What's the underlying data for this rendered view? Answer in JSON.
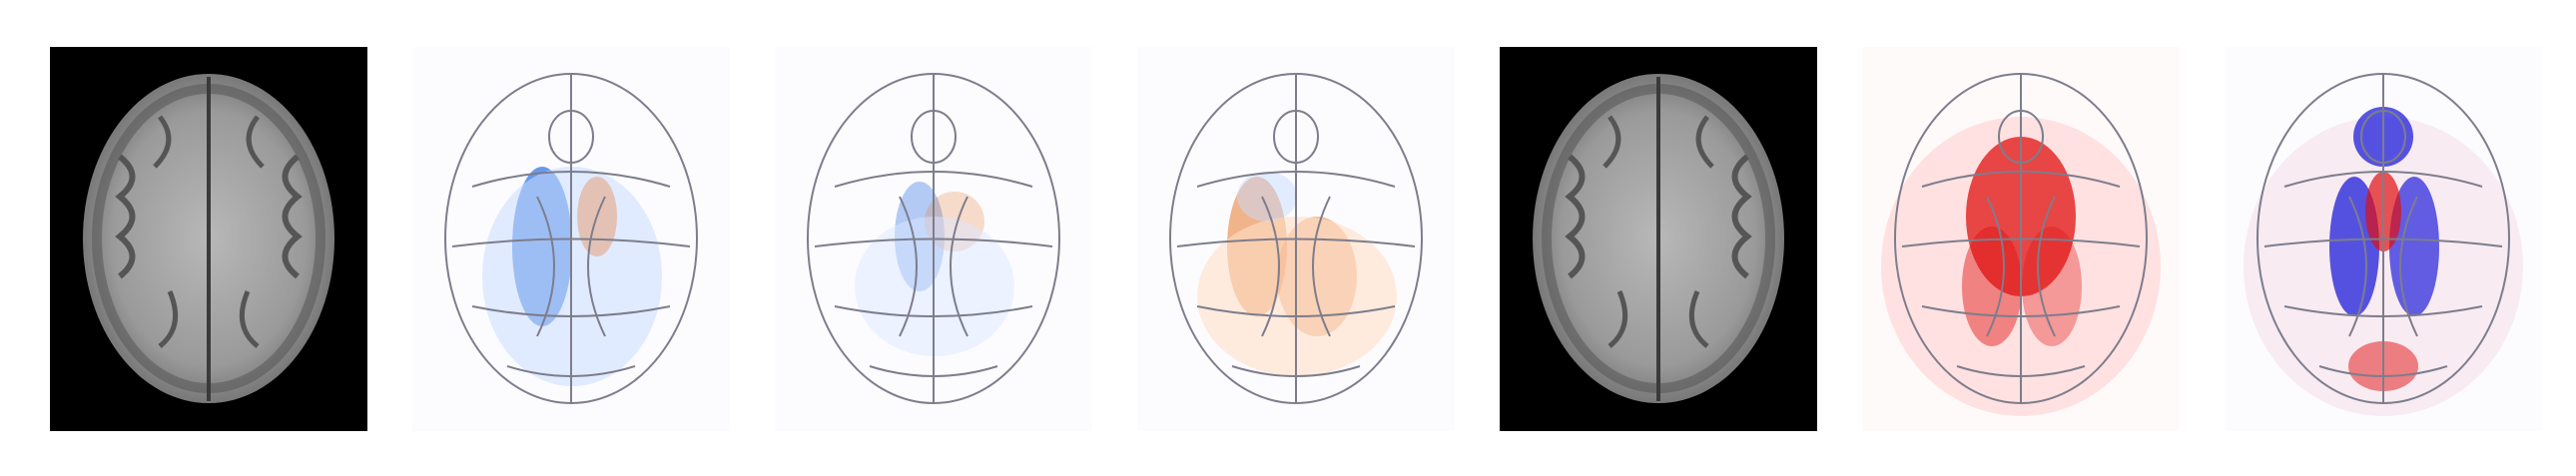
{
  "figure": {
    "panels": [
      {
        "kind": "mri-slice",
        "background": "#000000"
      },
      {
        "kind": "difference-map",
        "colormap": "blue-orange",
        "blue_strength": 0.85,
        "orange_strength": 0.25
      },
      {
        "kind": "difference-map",
        "colormap": "blue-orange",
        "blue_strength": 0.45,
        "orange_strength": 0.45
      },
      {
        "kind": "difference-map",
        "colormap": "blue-orange",
        "blue_strength": 0.2,
        "orange_strength": 0.8
      },
      {
        "kind": "mri-slice",
        "background": "#000000"
      },
      {
        "kind": "difference-map",
        "colormap": "red",
        "red_strength": 0.95
      },
      {
        "kind": "difference-map",
        "colormap": "red-blue",
        "red_strength": 0.8,
        "blue_strength": 0.9
      }
    ],
    "colors": {
      "blue": "#2a6fe0",
      "orange": "#e8762a",
      "red": "#e01010",
      "deep_blue": "#1010d8",
      "outline": "#7d7d8c",
      "brain_gray": "#9a9a9a"
    }
  }
}
